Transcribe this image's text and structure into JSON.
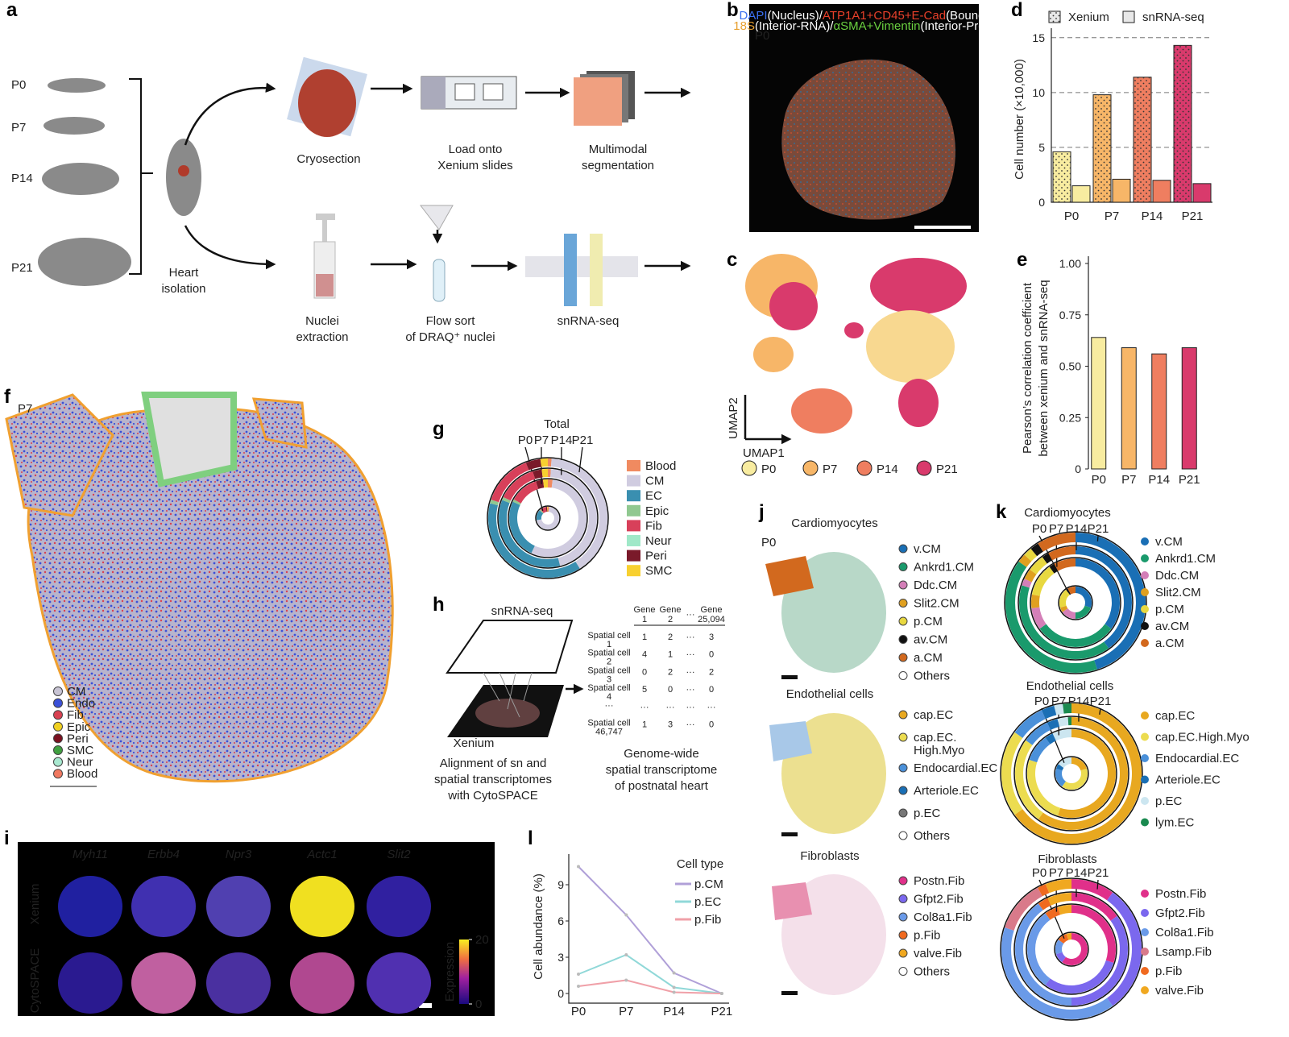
{
  "panels": {
    "a": {
      "letter": "a",
      "ages": [
        "P0",
        "P7",
        "P14",
        "P21"
      ],
      "heart_isolation": [
        "Heart",
        "isolation"
      ],
      "steps_xenium": [
        [
          "Cryosection"
        ],
        [
          "Load onto",
          "Xenium slides"
        ],
        [
          "Multimodal",
          "segmentation"
        ]
      ],
      "steps_sn": [
        [
          "Nuclei",
          "extraction"
        ],
        [
          "Flow sort",
          "of DRAQ⁺ nuclei"
        ],
        [
          "snRNA-seq"
        ]
      ]
    },
    "b": {
      "letter": "b",
      "age": "P0",
      "caption": [
        [
          {
            "text": "DAPI",
            "color": "#3a6ff0"
          },
          {
            "text": "(Nucleus)/",
            "color": "#ffffff"
          },
          {
            "text": "ATP1A1+CD45+E-Cad",
            "color": "#e8402a"
          },
          {
            "text": "(Boundary)/",
            "color": "#ffffff"
          }
        ],
        [
          {
            "text": "18S",
            "color": "#e8a030"
          },
          {
            "text": "(Interior-RNA)/",
            "color": "#ffffff"
          },
          {
            "text": "αSMA+Vimentin",
            "color": "#6ad040"
          },
          {
            "text": "(Interior-Protein)",
            "color": "#ffffff"
          }
        ]
      ]
    },
    "c": {
      "letter": "c",
      "xlabel": "UMAP1",
      "ylabel": "UMAP2",
      "legend": [
        {
          "name": "P0",
          "color": "#f8eca0"
        },
        {
          "name": "P7",
          "color": "#f7b668"
        },
        {
          "name": "P14",
          "color": "#ef7e60"
        },
        {
          "name": "P21",
          "color": "#d93a6c"
        }
      ]
    },
    "d": {
      "letter": "d",
      "type": "bar",
      "ylabel": "Cell number (×10,000)",
      "categories": [
        "P0",
        "P7",
        "P14",
        "P21"
      ],
      "colors": [
        "#f8eca0",
        "#f7b668",
        "#ef7e60",
        "#d93a6c"
      ],
      "series": [
        {
          "name": "Xenium",
          "pattern": "dots",
          "values": [
            4.6,
            9.8,
            11.4,
            14.3
          ]
        },
        {
          "name": "snRNA-seq",
          "pattern": "solid",
          "values": [
            1.5,
            2.1,
            2.0,
            1.7
          ]
        }
      ],
      "ylim": [
        0,
        15.5
      ],
      "yticks": [
        0,
        5,
        10,
        15
      ],
      "grid": true
    },
    "e": {
      "letter": "e",
      "type": "bar",
      "ylabel": [
        "Pearson’s correlation coefficient",
        "between xenium and snRNA-seq"
      ],
      "categories": [
        "P0",
        "P7",
        "P14",
        "P21"
      ],
      "colors": [
        "#f8eca0",
        "#f7b668",
        "#ef7e60",
        "#d93a6c"
      ],
      "values": [
        0.64,
        0.59,
        0.56,
        0.59
      ],
      "ylim": [
        0,
        1
      ],
      "yticks": [
        0,
        0.25,
        {
          "value": 0.5,
          "label": "0.50"
        },
        0.75,
        {
          "value": 1,
          "label": "1.00"
        }
      ]
    },
    "f": {
      "letter": "f",
      "age": "P7",
      "legend": [
        {
          "name": "CM",
          "color": "#c8c4d4"
        },
        {
          "name": "Endo",
          "color": "#3a50d8"
        },
        {
          "name": "Fib",
          "color": "#d84050"
        },
        {
          "name": "Epic",
          "color": "#f0d020"
        },
        {
          "name": "Peri",
          "color": "#7a1020"
        },
        {
          "name": "SMC",
          "color": "#40a040"
        },
        {
          "name": "Neur",
          "color": "#a8e8d0"
        },
        {
          "name": "Blood",
          "color": "#f07860"
        }
      ]
    },
    "g": {
      "letter": "g",
      "type": "donut",
      "title": "Total",
      "categories": [
        "Blood",
        "CM",
        "EC",
        "Epic",
        "Fib",
        "Neur",
        "Peri",
        "SMC"
      ],
      "colors": [
        "#f08a60",
        "#d0cce0",
        "#3a8fb0",
        "#90c890",
        "#d8405a",
        "#a0e8c8",
        "#7a1a2a",
        "#f8d030"
      ],
      "rings": [
        {
          "name": "P0",
          "values": [
            2,
            70,
            15,
            2,
            8,
            0,
            2,
            1
          ]
        },
        {
          "name": "P7",
          "values": [
            2,
            55,
            25,
            1,
            12,
            0,
            3,
            2
          ]
        },
        {
          "name": "P14",
          "values": [
            1,
            45,
            35,
            1,
            13,
            0,
            3,
            2
          ]
        },
        {
          "name": "P21",
          "values": [
            1,
            40,
            38,
            1,
            14,
            0,
            4,
            2
          ]
        }
      ]
    },
    "h": {
      "letter": "h",
      "top_label": "snRNA-seq",
      "bottom_label": "Xenium",
      "caption_left": [
        "Alignment of sn and",
        "spatial transcriptomes",
        "with CytoSPACE"
      ],
      "caption_right": [
        "Genome-wide",
        "spatial transcriptome",
        "of postnatal heart"
      ],
      "table": {
        "columns": [
          [
            "Gene",
            "1"
          ],
          [
            "Gene",
            "2"
          ],
          [
            "···"
          ],
          [
            "Gene",
            "25,094"
          ]
        ],
        "rows": [
          {
            "label": [
              "Spatial cell",
              "1"
            ],
            "values": [
              1,
              2,
              "···",
              3
            ]
          },
          {
            "label": [
              "Spatial cell",
              "2"
            ],
            "values": [
              4,
              1,
              "···",
              0
            ]
          },
          {
            "label": [
              "Spatial cell",
              "3"
            ],
            "values": [
              0,
              2,
              "···",
              2
            ]
          },
          {
            "label": [
              "Spatial cell",
              "4"
            ],
            "values": [
              5,
              0,
              "···",
              0
            ]
          },
          {
            "label": [
              "···"
            ],
            "values": [
              "···",
              "···",
              "···",
              "···"
            ]
          },
          {
            "label": [
              "Spatial cell",
              "46,747"
            ],
            "values": [
              1,
              3,
              "···",
              0
            ]
          }
        ]
      }
    },
    "i": {
      "letter": "i",
      "genes": [
        "Myh11",
        "Erbb4",
        "Npr3",
        "Actc1",
        "Slit2"
      ],
      "rows": [
        "Xenium",
        "CytoSPACE"
      ],
      "colorbar": {
        "label": "Expression",
        "lim": [
          0,
          20
        ],
        "ticks": [
          0,
          20
        ]
      }
    },
    "j": {
      "letter": "j",
      "age": "P0",
      "groups": [
        {
          "title": "Cardiomyocytes",
          "legend": [
            {
              "name": "v.CM",
              "color": "#1a6fb5"
            },
            {
              "name": "Ankrd1.CM",
              "color": "#1a9a6c"
            },
            {
              "name": "Ddc.CM",
              "color": "#d47fb8"
            },
            {
              "name": "Slit2.CM",
              "color": "#e0a020"
            },
            {
              "name": "p.CM",
              "color": "#e8d840"
            },
            {
              "name": "av.CM",
              "color": "#111111"
            },
            {
              "name": "a.CM",
              "color": "#d2691e"
            },
            {
              "name": "Others",
              "color": "#ffffff"
            }
          ]
        },
        {
          "title": "Endothelial cells",
          "legend": [
            {
              "name": "cap.EC",
              "color": "#e8a820"
            },
            {
              "name": [
                "cap.EC.",
                "High.Myo"
              ],
              "color": "#ecdc50"
            },
            {
              "name": "Endocardial.EC",
              "color": "#4a90d9"
            },
            {
              "name": "Arteriole.EC",
              "color": "#1a6fb5"
            },
            {
              "name": "p.EC",
              "color": "#777777"
            },
            {
              "name": "Others",
              "color": "#ffffff"
            }
          ]
        },
        {
          "title": "Fibroblasts",
          "legend": [
            {
              "name": "Postn.Fib",
              "color": "#e0308a"
            },
            {
              "name": "Gfpt2.Fib",
              "color": "#7b68ee"
            },
            {
              "name": "Col8a1.Fib",
              "color": "#6a9ae8"
            },
            {
              "name": "p.Fib",
              "color": "#f06a20"
            },
            {
              "name": "valve.Fib",
              "color": "#f0a820"
            },
            {
              "name": "Others",
              "color": "#ffffff"
            }
          ]
        }
      ]
    },
    "k": {
      "letter": "k",
      "donuts": [
        {
          "type": "donut",
          "title": "Cardiomyocytes",
          "categories": [
            "v.CM",
            "Ankrd1.CM",
            "Ddc.CM",
            "Slit2.CM",
            "p.CM",
            "av.CM",
            "a.CM"
          ],
          "colors": [
            "#1a6fb5",
            "#1a9a6c",
            "#d47fb8",
            "#e0a020",
            "#e8d840",
            "#111111",
            "#d2691e"
          ],
          "rings": [
            {
              "name": "P0",
              "values": [
                30,
                20,
                15,
                5,
                20,
                2,
                8
              ]
            },
            {
              "name": "P7",
              "values": [
                35,
                30,
                8,
                5,
                12,
                2,
                8
              ]
            },
            {
              "name": "P14",
              "values": [
                40,
                40,
                2,
                3,
                5,
                2,
                8
              ]
            },
            {
              "name": "P21",
              "values": [
                45,
                40,
                0,
                2,
                2,
                2,
                9
              ]
            }
          ]
        },
        {
          "type": "donut",
          "title": "Endothelial cells",
          "categories": [
            "cap.EC",
            "cap.EC.High.Myo",
            "Endocardial.EC",
            "Arteriole.EC",
            "p.EC",
            "lym.EC"
          ],
          "colors": [
            "#e8a820",
            "#ecdc50",
            "#4a90d9",
            "#1a6fb5",
            "#cce6f0",
            "#1a8a50"
          ],
          "rings": [
            {
              "name": "P0",
              "values": [
                20,
                40,
                20,
                5,
                15,
                0
              ]
            },
            {
              "name": "P7",
              "values": [
                55,
                25,
                10,
                3,
                7,
                0
              ]
            },
            {
              "name": "P14",
              "values": [
                60,
                25,
                8,
                3,
                3,
                1
              ]
            },
            {
              "name": "P21",
              "values": [
                65,
                20,
                8,
                3,
                2,
                2
              ]
            }
          ]
        },
        {
          "type": "donut",
          "title": "Fibroblasts",
          "categories": [
            "Postn.Fib",
            "Gfpt2.Fib",
            "Col8a1.Fib",
            "Lsamp.Fib",
            "p.Fib",
            "valve.Fib"
          ],
          "colors": [
            "#e0308a",
            "#7b68ee",
            "#6a9ae8",
            "#d97a8a",
            "#f06a20",
            "#f0a820"
          ],
          "rings": [
            {
              "name": "P0",
              "values": [
                60,
                10,
                15,
                0,
                10,
                5
              ]
            },
            {
              "name": "P7",
              "values": [
                30,
                30,
                30,
                0,
                5,
                5
              ]
            },
            {
              "name": "P14",
              "values": [
                15,
                35,
                40,
                0,
                3,
                7
              ]
            },
            {
              "name": "P21",
              "values": [
                10,
                30,
                40,
                12,
                2,
                6
              ]
            }
          ]
        }
      ]
    },
    "l": {
      "letter": "l",
      "type": "line",
      "ylabel": "Cell abundance (%)",
      "legend_title": "Cell type",
      "categories": [
        "P0",
        "P7",
        "P14",
        "P21"
      ],
      "series": [
        {
          "name": "p.CM",
          "color": "#b0a0d8",
          "values": [
            10.5,
            6.5,
            1.7,
            0
          ]
        },
        {
          "name": "p.EC",
          "color": "#90d8d8",
          "values": [
            1.6,
            3.2,
            0.5,
            0
          ]
        },
        {
          "name": "p.Fib",
          "color": "#f0a0a8",
          "values": [
            0.6,
            1.1,
            0.1,
            0
          ]
        }
      ],
      "ylim": [
        0,
        11
      ],
      "yticks": [
        0,
        3,
        6,
        9
      ]
    }
  }
}
